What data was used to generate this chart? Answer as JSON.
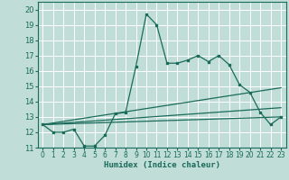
{
  "xlabel": "Humidex (Indice chaleur)",
  "xlim": [
    -0.5,
    23.5
  ],
  "ylim": [
    11,
    20.5
  ],
  "yticks": [
    11,
    12,
    13,
    14,
    15,
    16,
    17,
    18,
    19,
    20
  ],
  "xticks": [
    0,
    1,
    2,
    3,
    4,
    5,
    6,
    7,
    8,
    9,
    10,
    11,
    12,
    13,
    14,
    15,
    16,
    17,
    18,
    19,
    20,
    21,
    22,
    23
  ],
  "bg_color": "#c0ddd8",
  "line_color": "#1a6b5a",
  "grid_color": "#ffffff",
  "lines": [
    {
      "x": [
        0,
        1,
        2,
        3,
        4,
        5,
        6,
        7,
        8,
        9,
        10,
        11,
        12,
        13,
        14,
        15,
        16,
        17,
        18,
        19,
        20,
        21,
        22,
        23
      ],
      "y": [
        12.5,
        12.0,
        12.0,
        12.2,
        11.1,
        11.1,
        11.8,
        13.2,
        13.3,
        16.3,
        19.7,
        19.0,
        16.5,
        16.5,
        16.7,
        17.0,
        16.6,
        17.0,
        16.4,
        15.1,
        14.6,
        13.3,
        12.5,
        13.0
      ],
      "marker": true
    },
    {
      "x": [
        0,
        23
      ],
      "y": [
        12.5,
        13.0
      ],
      "marker": false
    },
    {
      "x": [
        0,
        23
      ],
      "y": [
        12.5,
        13.6
      ],
      "marker": false
    },
    {
      "x": [
        0,
        23
      ],
      "y": [
        12.5,
        14.9
      ],
      "marker": false
    }
  ]
}
